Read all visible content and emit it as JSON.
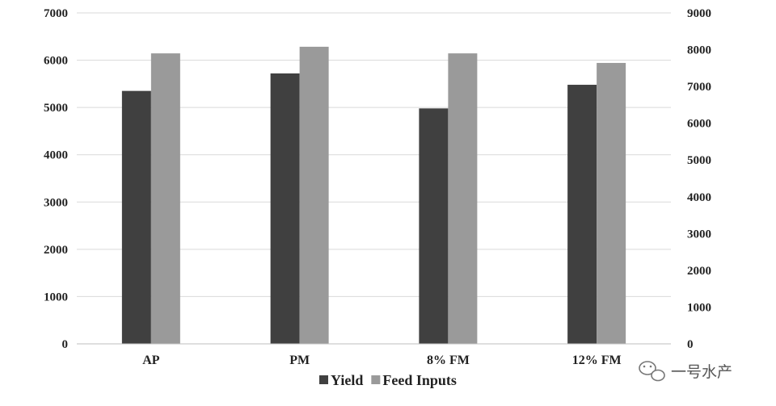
{
  "chart_data": {
    "type": "bar",
    "categories": [
      "AP",
      "PM",
      "8% FM",
      "12% FM"
    ],
    "series": [
      {
        "name": "Yield",
        "axis": "left",
        "color": "#404040",
        "values": [
          5350,
          5720,
          4980,
          5480
        ]
      },
      {
        "name": "Feed Inputs",
        "axis": "right",
        "color": "#9a9a9a",
        "values": [
          7900,
          8080,
          7900,
          7640
        ]
      }
    ],
    "y_left": {
      "ylim": [
        0,
        7000
      ],
      "ticks": [
        "0",
        "1000",
        "2000",
        "3000",
        "4000",
        "5000",
        "6000",
        "7000"
      ]
    },
    "y_right": {
      "ylim": [
        0,
        9000
      ],
      "ticks": [
        "0",
        "1000",
        "2000",
        "3000",
        "4000",
        "5000",
        "6000",
        "7000",
        "8000",
        "9000"
      ]
    },
    "grid": true,
    "legend_position": "bottom"
  },
  "watermark": {
    "text": "一号水产"
  }
}
